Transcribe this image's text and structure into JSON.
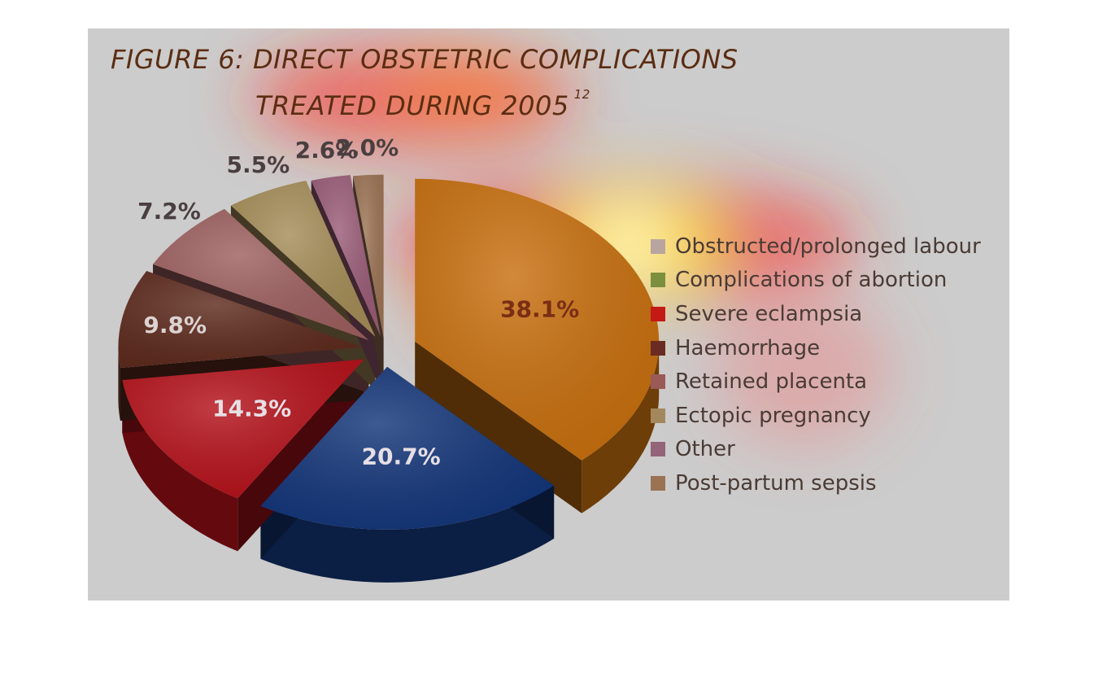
{
  "chart_data": {
    "type": "pie",
    "title": "FIGURE 6: DIRECT OBSTETRIC COMPLICATIONS",
    "title_line2": "TREATED DURING 2005",
    "title_superscript": "12",
    "slices": [
      {
        "label": "Obstructed/prolonged labour",
        "value": 38.1,
        "value_label": "38.1%",
        "color": "#c8700f"
      },
      {
        "label": "Complications of abortion",
        "value": 20.7,
        "value_label": "20.7%",
        "color": "#14367a"
      },
      {
        "label": "Severe eclampsia",
        "value": 14.3,
        "value_label": "14.3%",
        "color": "#b5121b"
      },
      {
        "label": "Haemorrhage",
        "value": 9.8,
        "value_label": "9.8%",
        "color": "#5e2b1e"
      },
      {
        "label": "Retained placenta",
        "value": 7.2,
        "value_label": "7.2%",
        "color": "#9e6060"
      },
      {
        "label": "Ectopic pregnancy",
        "value": 5.5,
        "value_label": "5.5%",
        "color": "#a58d58"
      },
      {
        "label": "Other",
        "value": 2.6,
        "value_label": "2.6%",
        "color": "#9a5d78"
      },
      {
        "label": "Post-partum sepsis",
        "value": 2.0,
        "value_label": "2.0%",
        "color": "#9c7455"
      }
    ],
    "legend": [
      {
        "label": "Obstructed/prolonged labour",
        "color": "#b9a5a0"
      },
      {
        "label": "Complications of abortion",
        "color": "#7c8f3e"
      },
      {
        "label": "Severe eclampsia",
        "color": "#c41a16"
      },
      {
        "label": "Haemorrhage",
        "color": "#6a2b22"
      },
      {
        "label": "Retained placenta",
        "color": "#9a5a57"
      },
      {
        "label": "Ectopic pregnancy",
        "color": "#a3885e"
      },
      {
        "label": "Other",
        "color": "#946478"
      },
      {
        "label": "Post-partum sepsis",
        "color": "#9a7254"
      }
    ],
    "legend_position": "right",
    "style": "3d-exploded-pie"
  }
}
